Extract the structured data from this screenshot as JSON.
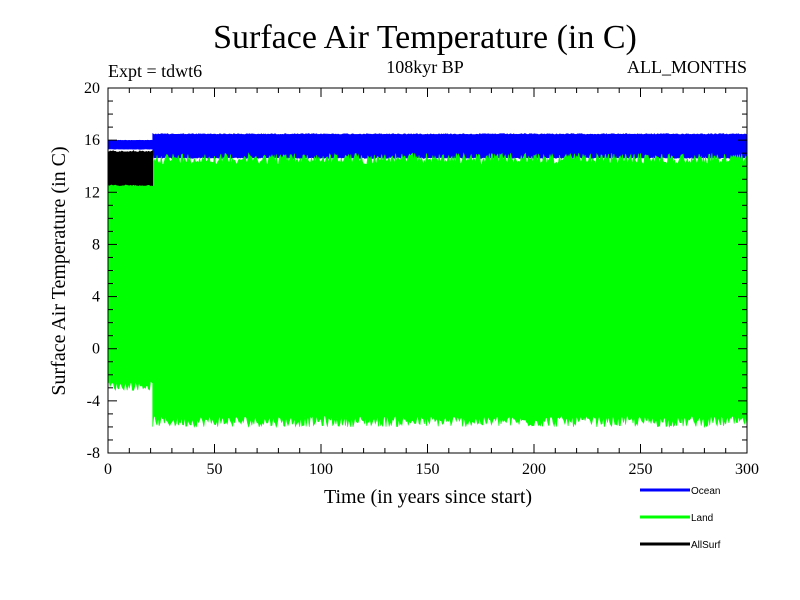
{
  "chart_data": {
    "type": "area",
    "title": "Surface Air Temperature (in C)",
    "subtitle_left": "Expt = tdwt6",
    "subtitle_center": "108kyr BP",
    "subtitle_right": "ALL_MONTHS",
    "xlabel": "Time (in years since start)",
    "ylabel": "Surface Air Temperature (in C)",
    "xlim": [
      0,
      300
    ],
    "ylim": [
      -8,
      20
    ],
    "xticks": [
      0,
      50,
      100,
      150,
      200,
      250,
      300
    ],
    "yticks": [
      -8,
      -4,
      0,
      4,
      8,
      12,
      16,
      20
    ],
    "series": [
      {
        "name": "Ocean",
        "color": "#0000ff",
        "segments": [
          {
            "x": [
              0,
              21
            ],
            "min": 15.3,
            "max": 16.0
          },
          {
            "x": [
              21,
              300
            ],
            "min": 14.6,
            "max": 16.5
          }
        ]
      },
      {
        "name": "Land",
        "color": "#00ff00",
        "segments": [
          {
            "x": [
              0,
              21
            ],
            "min": -3.2,
            "max": 14.5
          },
          {
            "x": [
              21,
              300
            ],
            "min": -6.0,
            "max": 15.0
          }
        ]
      },
      {
        "name": "AllSurf",
        "color": "#000000",
        "segments": [
          {
            "x": [
              0,
              21
            ],
            "min": 12.5,
            "max": 15.2
          }
        ]
      }
    ],
    "legend": {
      "placement": "bottom-right",
      "entries": [
        "Ocean",
        "Land",
        "AllSurf"
      ]
    }
  }
}
